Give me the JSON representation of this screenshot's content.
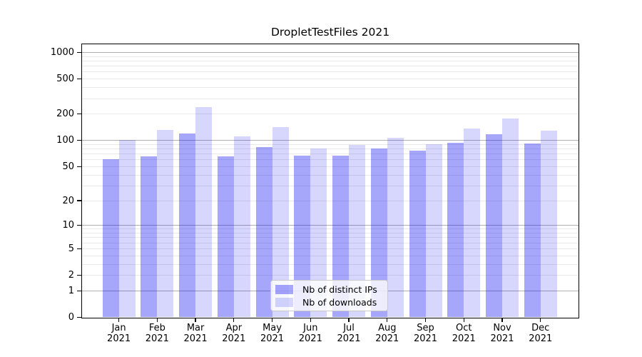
{
  "chart_data": {
    "type": "bar",
    "title": "DropletTestFiles 2021",
    "categories": [
      "Jan",
      "Feb",
      "Mar",
      "Apr",
      "May",
      "Jun",
      "Jul",
      "Aug",
      "Sep",
      "Oct",
      "Nov",
      "Dec"
    ],
    "category_year": "2021",
    "series": [
      {
        "name": "Nb of distinct IPs",
        "color": "rgba(0,0,240,0.35)",
        "values": [
          61,
          66,
          121,
          66,
          84,
          67,
          67,
          81,
          76,
          94,
          118,
          92
        ]
      },
      {
        "name": "Nb of downloads",
        "color": "rgba(0,0,240,0.155)",
        "values": [
          101,
          131,
          240,
          111,
          142,
          81,
          89,
          107,
          90,
          137,
          179,
          130
        ]
      }
    ],
    "y_scale": "symlog",
    "y_ticks": [
      0,
      1,
      2,
      5,
      10,
      20,
      50,
      100,
      200,
      500,
      1000
    ],
    "ylim": [
      0,
      1240
    ],
    "xlabel": "",
    "ylabel": "",
    "grid": true,
    "legend_position": "lower center"
  }
}
